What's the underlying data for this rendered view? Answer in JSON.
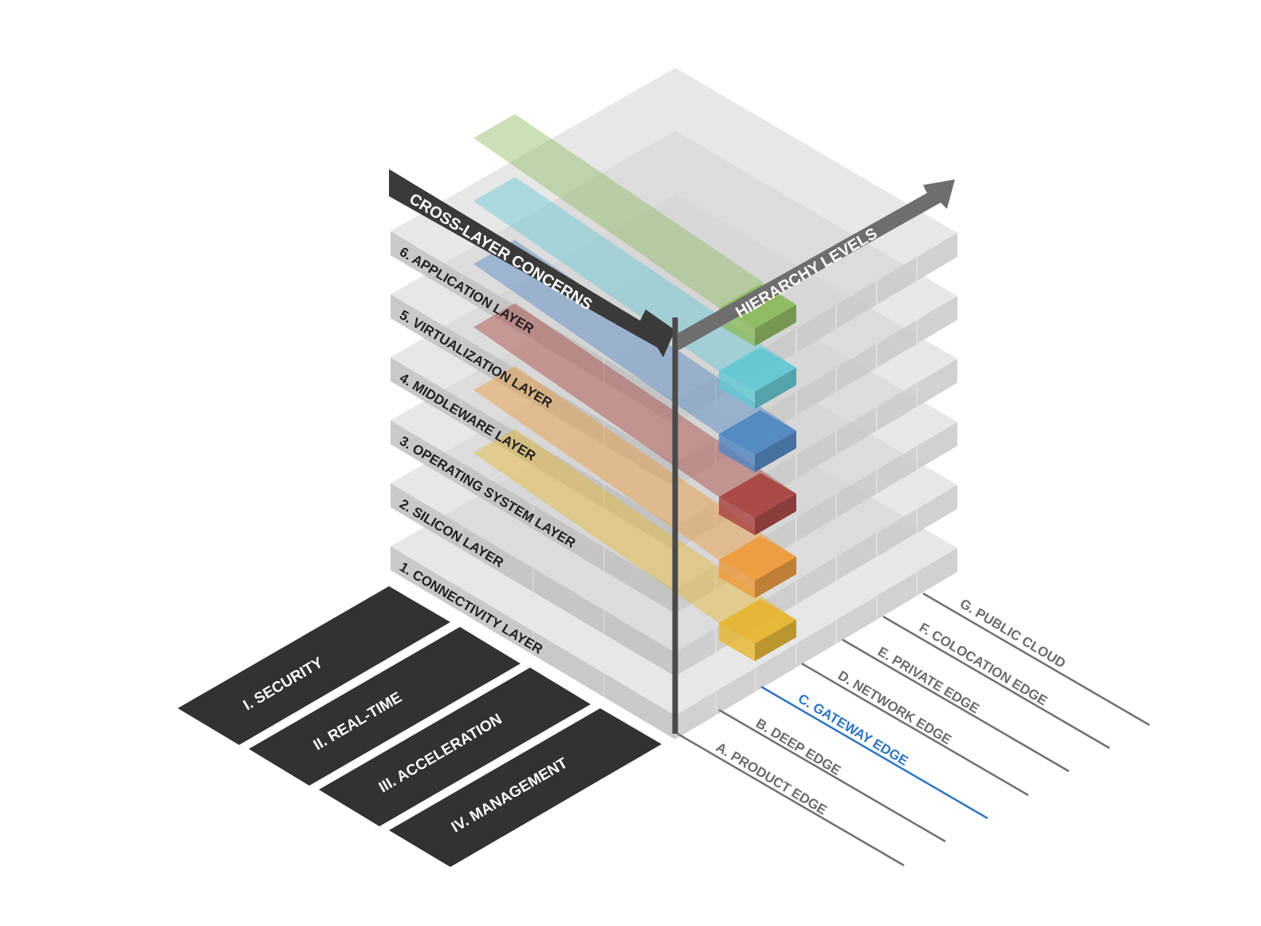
{
  "diagram": {
    "arrows": {
      "cross_layer": "CROSS-LAYER CONCERNS",
      "hierarchy": "HIERARCHY LEVELS"
    },
    "layers": [
      {
        "label": "1. CONNECTIVITY LAYER",
        "color": "#e7b62e"
      },
      {
        "label": "2. SILICON LAYER",
        "color": "#ee9a3a"
      },
      {
        "label": "3. OPERATING SYSTEM LAYER",
        "color": "#a8423f"
      },
      {
        "label": "4. MIDDLEWARE LAYER",
        "color": "#4f86c2"
      },
      {
        "label": "5. VIRTUALIZATION LAYER",
        "color": "#62c8d4"
      },
      {
        "label": "6. APPLICATION LAYER",
        "color": "#8dba5f"
      }
    ],
    "hierarchy_levels": [
      {
        "label": "A. PRODUCT EDGE",
        "highlight": false
      },
      {
        "label": "B. DEEP EDGE",
        "highlight": false
      },
      {
        "label": "C. GATEWAY EDGE",
        "highlight": true
      },
      {
        "label": "D. NETWORK EDGE",
        "highlight": false
      },
      {
        "label": "E. PRIVATE EDGE",
        "highlight": false
      },
      {
        "label": "F. COLOCATION EDGE",
        "highlight": false
      },
      {
        "label": "G. PUBLIC CLOUD",
        "highlight": false
      }
    ],
    "concerns": [
      "I. SECURITY",
      "II. REAL-TIME",
      "III. ACCELERATION",
      "IV. MANAGEMENT"
    ],
    "colors": {
      "slab_top": "#d3d3d3",
      "slab_left": "#bfbfbf",
      "slab_right": "#c9c9c9",
      "level_text": "#6b6b6b",
      "highlight_text": "#2f75c0",
      "concern_box": "#323232",
      "arrow_dark": "#3a3a3a",
      "arrow_gray": "#6e6e6e"
    }
  }
}
